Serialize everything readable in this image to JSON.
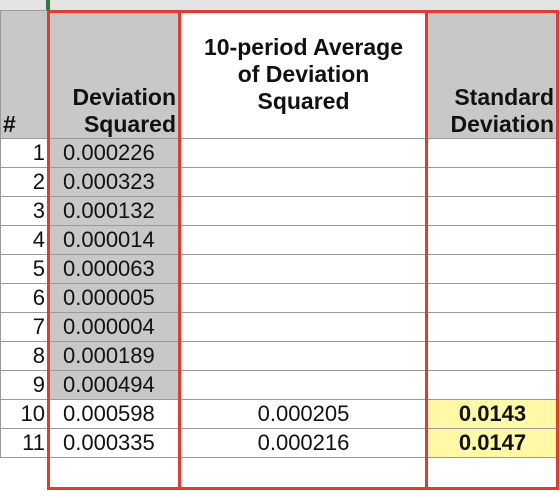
{
  "headers": {
    "num": "#",
    "deviation_squared": [
      "Deviation",
      "Squared"
    ],
    "avg": [
      "10-period Average",
      "of Deviation",
      "Squared"
    ],
    "std_dev": [
      "Standard",
      "Deviation"
    ]
  },
  "rows": [
    {
      "n": "1",
      "dev": "0.000226",
      "avg": "",
      "sd": ""
    },
    {
      "n": "2",
      "dev": "0.000323",
      "avg": "",
      "sd": ""
    },
    {
      "n": "3",
      "dev": "0.000132",
      "avg": "",
      "sd": ""
    },
    {
      "n": "4",
      "dev": "0.000014",
      "avg": "",
      "sd": ""
    },
    {
      "n": "5",
      "dev": "0.000063",
      "avg": "",
      "sd": ""
    },
    {
      "n": "6",
      "dev": "0.000005",
      "avg": "",
      "sd": ""
    },
    {
      "n": "7",
      "dev": "0.000004",
      "avg": "",
      "sd": ""
    },
    {
      "n": "8",
      "dev": "0.000189",
      "avg": "",
      "sd": ""
    },
    {
      "n": "9",
      "dev": "0.000494",
      "avg": "",
      "sd": ""
    },
    {
      "n": "10",
      "dev": "0.000598",
      "avg": "0.000205",
      "sd": "0.0143"
    },
    {
      "n": "11",
      "dev": "0.000335",
      "avg": "0.000216",
      "sd": "0.0147"
    }
  ],
  "colors": {
    "outline": "#e53a2f",
    "header_fill": "#c8c8c8",
    "highlight": "#fff9a6"
  }
}
